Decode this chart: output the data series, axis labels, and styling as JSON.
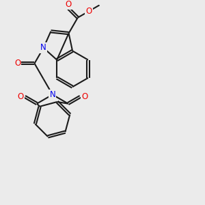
{
  "bg_color": "#ebebeb",
  "bond_color": "#1a1a1a",
  "N_color": "#0000ee",
  "O_color": "#ee0000",
  "line_width": 1.5,
  "dbo": 0.055,
  "font_size": 8.5,
  "xlim": [
    0,
    10
  ],
  "ylim": [
    0,
    10
  ]
}
